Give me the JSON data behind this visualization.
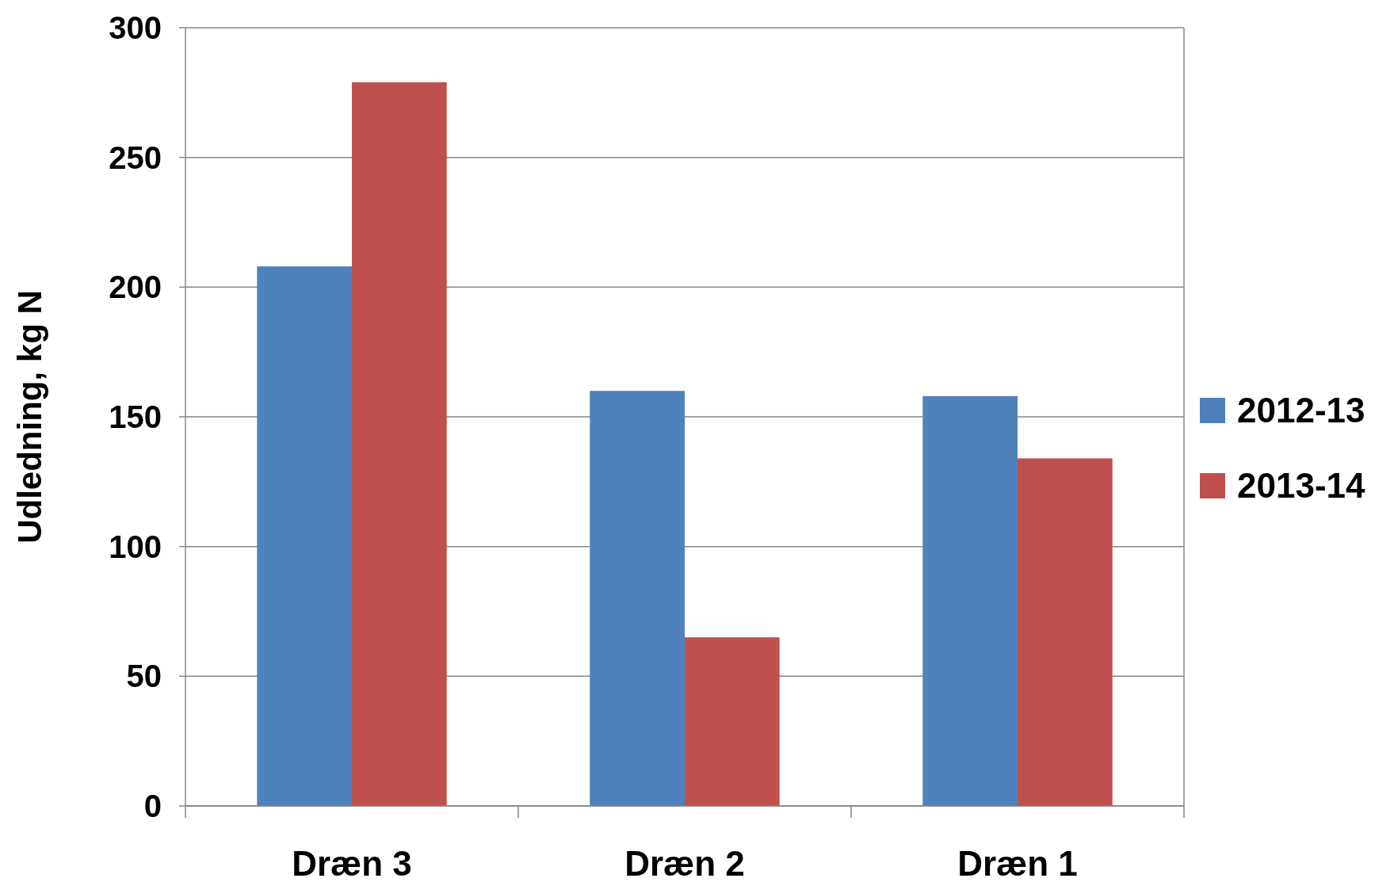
{
  "chart_data": {
    "type": "bar",
    "ylabel": "Udledning, kg N",
    "categories": [
      "Dræn 3",
      "Dræn 2",
      "Dræn 1"
    ],
    "series": [
      {
        "name": "2012-13",
        "color": "#4f81bd",
        "values": [
          208,
          160,
          158
        ]
      },
      {
        "name": "2013-14",
        "color": "#c0504d",
        "values": [
          279,
          65,
          134
        ]
      }
    ],
    "ylim": [
      0,
      300
    ],
    "yticks": [
      0,
      50,
      100,
      150,
      200,
      250,
      300
    ],
    "grid": "y",
    "legend": "right"
  }
}
